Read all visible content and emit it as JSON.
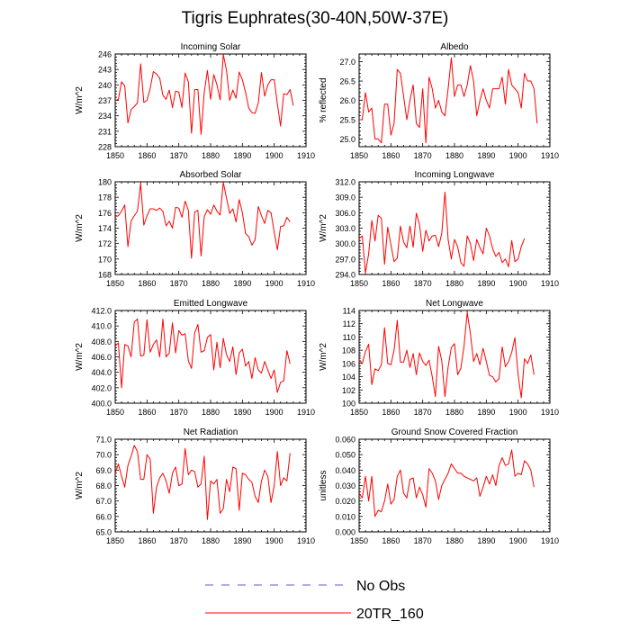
{
  "title": "Tigris Euphrates(30-40N,50W-37E)",
  "legend": {
    "entries": [
      {
        "label": "No Obs",
        "style": "dashed",
        "color": "#5a5ad6"
      },
      {
        "label": "20TR_160",
        "style": "solid",
        "color": "#ff0000"
      }
    ]
  },
  "colors": {
    "series": "#ff0000",
    "axis": "#000000",
    "obs": "#5a5ad6"
  },
  "chart_data": [
    {
      "type": "line",
      "title": "Incoming Solar",
      "ylabel": "W/m^2",
      "xlim": [
        1850,
        1910
      ],
      "x_ticks": [
        "1850",
        "1860",
        "1870",
        "1880",
        "1890",
        "1900",
        "1910"
      ],
      "ylim": [
        228,
        246
      ],
      "y_ticks": [
        "228",
        "231",
        "234",
        "237",
        "240",
        "243",
        "246"
      ],
      "x_start": 1850,
      "values": [
        237.0,
        237.2,
        240.6,
        239.8,
        232.6,
        235.2,
        235.8,
        236.5,
        244.1,
        236.6,
        237.0,
        239.3,
        242.6,
        242.1,
        241.3,
        238.0,
        237.2,
        239.0,
        235.6,
        238.8,
        238.6,
        235.6,
        242.3,
        240.6,
        230.6,
        239.1,
        239.1,
        230.4,
        238.5,
        242.8,
        237.2,
        242.0,
        240.0,
        237.1,
        245.9,
        242.8,
        237.0,
        239.0,
        237.4,
        242.5,
        241.0,
        238.5,
        235.5,
        234.6,
        234.5,
        236.5,
        242.4,
        237.8,
        240.0,
        241.0,
        241.0,
        236.3,
        232.0,
        238.3,
        238.1,
        239.1,
        236.0
      ]
    },
    {
      "type": "line",
      "title": "Albedo",
      "ylabel": "% reflected",
      "xlim": [
        1850,
        1910
      ],
      "x_ticks": [
        "1850",
        "1860",
        "1870",
        "1880",
        "1890",
        "1900",
        "1910"
      ],
      "ylim": [
        24.8,
        27.2
      ],
      "y_ticks": [
        "25.0",
        "25.5",
        "26.0",
        "26.5",
        "27.0"
      ],
      "x_start": 1850,
      "values": [
        25.5,
        25.5,
        26.2,
        25.7,
        25.8,
        25.0,
        25.0,
        24.9,
        25.9,
        25.9,
        25.1,
        25.4,
        26.8,
        26.7,
        26.1,
        25.5,
        26.0,
        26.4,
        25.4,
        25.3,
        26.3,
        24.9,
        26.6,
        26.3,
        25.8,
        26.0,
        25.7,
        25.6,
        26.3,
        27.1,
        26.1,
        26.4,
        26.4,
        26.1,
        26.4,
        26.9,
        26.5,
        25.6,
        26.0,
        26.3,
        26.0,
        25.8,
        26.3,
        26.3,
        26.3,
        26.6,
        25.9,
        26.8,
        26.4,
        26.3,
        26.2,
        25.8,
        26.7,
        26.5,
        26.5,
        26.3,
        25.4
      ]
    },
    {
      "type": "line",
      "title": "Absorbed Solar",
      "ylabel": "W/m^2",
      "xlim": [
        1850,
        1910
      ],
      "x_ticks": [
        "1850",
        "1860",
        "1870",
        "1880",
        "1890",
        "1900",
        "1910"
      ],
      "ylim": [
        168,
        180
      ],
      "y_ticks": [
        "168",
        "170",
        "172",
        "174",
        "176",
        "178",
        "180"
      ],
      "x_start": 1850,
      "values": [
        175.5,
        175.6,
        176.2,
        177.0,
        171.6,
        174.9,
        175.6,
        176.2,
        179.8,
        174.4,
        175.6,
        176.5,
        176.5,
        176.3,
        176.6,
        176.2,
        174.3,
        174.9,
        174.0,
        176.7,
        176.6,
        175.4,
        177.5,
        176.3,
        170.1,
        176.1,
        176.3,
        170.4,
        175.5,
        176.4,
        175.8,
        177.0,
        176.2,
        175.7,
        179.9,
        177.9,
        175.9,
        176.5,
        174.8,
        177.7,
        176.0,
        173.3,
        172.9,
        171.8,
        172.5,
        176.8,
        175.6,
        174.6,
        176.3,
        176.0,
        173.5,
        171.2,
        174.2,
        174.3,
        175.4,
        174.8
      ]
    },
    {
      "type": "line",
      "title": "Incoming Longwave",
      "ylabel": "W/m^2",
      "xlim": [
        1850,
        1910
      ],
      "x_ticks": [
        "1850",
        "1860",
        "1870",
        "1880",
        "1890",
        "1900",
        "1910"
      ],
      "ylim": [
        294,
        312
      ],
      "y_ticks": [
        "294.0",
        "297.0",
        "300.0",
        "303.0",
        "306.0",
        "309.0",
        "312.0"
      ],
      "x_start": 1850,
      "values": [
        301.0,
        301.5,
        294.3,
        298.0,
        304.5,
        300.5,
        305.5,
        304.9,
        296.0,
        303.2,
        299.8,
        296.5,
        297.2,
        303.4,
        300.3,
        299.2,
        303.4,
        299.3,
        305.9,
        303.7,
        298.5,
        302.6,
        300.5,
        301.5,
        301.6,
        299.4,
        302.0,
        310.0,
        300.8,
        297.0,
        300.8,
        299.4,
        296.3,
        295.6,
        301.5,
        300.0,
        296.7,
        300.8,
        299.2,
        298.0,
        303.0,
        301.5,
        299.0,
        297.5,
        298.3,
        296.3,
        297.0,
        295.5,
        300.6,
        296.5,
        297.0,
        299.4,
        301.0
      ]
    },
    {
      "type": "line",
      "title": "Emitted Longwave",
      "ylabel": "W/m^2",
      "xlim": [
        1850,
        1910
      ],
      "x_ticks": [
        "1850",
        "1860",
        "1870",
        "1880",
        "1890",
        "1900",
        "1910"
      ],
      "ylim": [
        400,
        412
      ],
      "y_ticks": [
        "400.0",
        "402.0",
        "404.0",
        "406.0",
        "408.0",
        "410.0",
        "412.0"
      ],
      "x_start": 1850,
      "values": [
        407.4,
        407.8,
        402.0,
        407.6,
        407.4,
        406.0,
        410.5,
        410.9,
        406.1,
        406.2,
        410.8,
        406.6,
        407.6,
        408.2,
        406.0,
        410.9,
        406.0,
        406.5,
        410.4,
        406.5,
        409.4,
        408.8,
        409.0,
        405.5,
        404.5,
        409.1,
        410.2,
        406.6,
        406.8,
        408.5,
        408.9,
        404.3,
        407.9,
        404.6,
        408.4,
        406.3,
        405.4,
        407.3,
        403.7,
        406.5,
        407.0,
        404.8,
        405.4,
        403.2,
        405.9,
        404.3,
        403.9,
        405.4,
        404.3,
        403.2,
        404.3,
        401.4,
        402.7,
        402.9,
        406.8,
        405.1
      ]
    },
    {
      "type": "line",
      "title": "Net Longwave",
      "ylabel": "W/m^2",
      "xlim": [
        1850,
        1910
      ],
      "x_ticks": [
        "1850",
        "1860",
        "1870",
        "1880",
        "1890",
        "1900",
        "1910"
      ],
      "ylim": [
        100,
        114
      ],
      "y_ticks": [
        "100",
        "102",
        "104",
        "106",
        "108",
        "110",
        "112",
        "114"
      ],
      "x_start": 1850,
      "values": [
        106.5,
        106.0,
        107.8,
        108.9,
        102.8,
        105.2,
        104.9,
        105.8,
        111.4,
        106.0,
        105.8,
        108.0,
        112.5,
        106.2,
        106.2,
        108.0,
        105.4,
        107.5,
        104.3,
        107.6,
        106.3,
        105.7,
        106.5,
        104.0,
        101.0,
        108.6,
        106.4,
        101.0,
        105.5,
        108.4,
        109.0,
        104.3,
        105.3,
        108.6,
        113.7,
        110.5,
        106.3,
        107.5,
        105.8,
        108.3,
        106.3,
        104.2,
        104.0,
        103.2,
        103.7,
        108.5,
        105.5,
        106.3,
        107.7,
        109.9,
        104.3,
        100.8,
        106.7,
        106.0,
        107.3,
        104.3
      ]
    },
    {
      "type": "line",
      "title": "Net Radiation",
      "ylabel": "W/m^2",
      "xlim": [
        1850,
        1910
      ],
      "x_ticks": [
        "1850",
        "1860",
        "1870",
        "1880",
        "1890",
        "1900",
        "1910"
      ],
      "ylim": [
        65,
        71
      ],
      "y_ticks": [
        "65.0",
        "66.0",
        "67.0",
        "68.0",
        "69.0",
        "70.0",
        "71.0"
      ],
      "x_start": 1850,
      "values": [
        68.8,
        69.4,
        68.6,
        67.9,
        69.3,
        69.9,
        70.6,
        70.2,
        68.4,
        68.4,
        70.0,
        69.7,
        66.2,
        67.9,
        68.5,
        68.8,
        68.3,
        67.5,
        68.8,
        69.2,
        68.0,
        68.1,
        70.4,
        68.7,
        69.0,
        68.9,
        67.9,
        68.1,
        69.9,
        65.8,
        68.3,
        68.1,
        68.4,
        66.2,
        66.5,
        68.4,
        67.6,
        69.2,
        69.1,
        66.4,
        68.8,
        68.7,
        68.4,
        68.2,
        67.3,
        66.9,
        68.3,
        69.0,
        68.6,
        66.9,
        68.0,
        70.2,
        68.0,
        68.5,
        68.3,
        70.1
      ]
    },
    {
      "type": "line",
      "title": "Ground Snow Covered Fraction",
      "ylabel": "unitless",
      "xlim": [
        1850,
        1910
      ],
      "x_ticks": [
        "1850",
        "1860",
        "1870",
        "1880",
        "1890",
        "1900",
        "1910"
      ],
      "ylim": [
        0.0,
        0.06
      ],
      "y_ticks": [
        "0.000",
        "0.010",
        "0.020",
        "0.030",
        "0.040",
        "0.050",
        "0.060"
      ],
      "x_start": 1850,
      "values": [
        0.025,
        0.022,
        0.036,
        0.02,
        0.036,
        0.01,
        0.014,
        0.013,
        0.02,
        0.031,
        0.018,
        0.021,
        0.036,
        0.04,
        0.025,
        0.022,
        0.034,
        0.035,
        0.022,
        0.029,
        0.024,
        0.016,
        0.041,
        0.038,
        0.033,
        0.021,
        0.03,
        0.034,
        0.038,
        0.044,
        0.041,
        0.038,
        0.038,
        0.036,
        0.035,
        0.034,
        0.033,
        0.035,
        0.023,
        0.029,
        0.036,
        0.031,
        0.037,
        0.03,
        0.043,
        0.048,
        0.043,
        0.044,
        0.053,
        0.036,
        0.038,
        0.037,
        0.046,
        0.044,
        0.04,
        0.029
      ]
    }
  ]
}
